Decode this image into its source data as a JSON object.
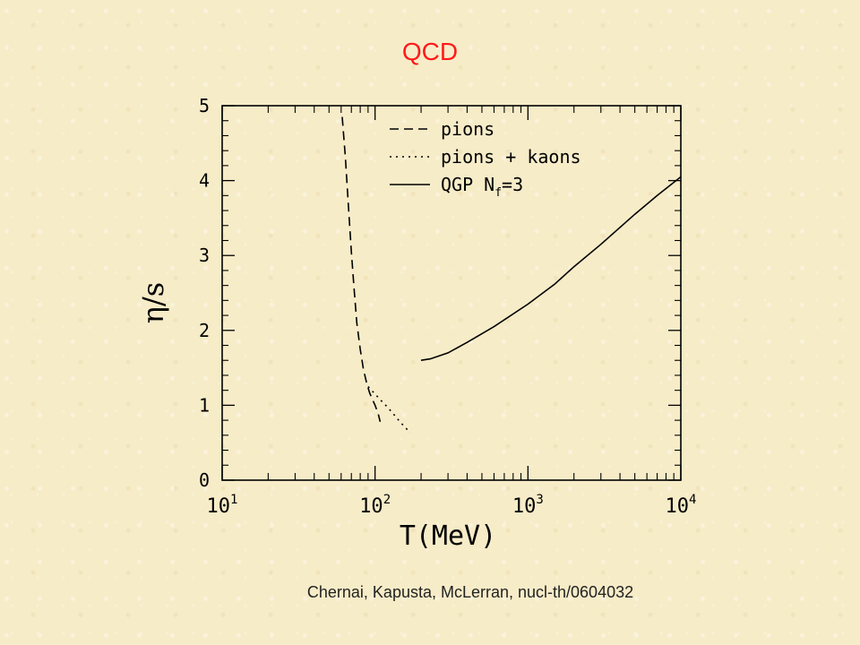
{
  "slide": {
    "title": "QCD",
    "citation": "Chernai, Kapusta, McLerran, nucl-th/0604032"
  },
  "colors": {
    "title": "#ff1a1a",
    "plot": "#000000"
  },
  "chart_data": {
    "type": "line",
    "title": "",
    "xlabel": "T(MeV)",
    "ylabel": "η/s",
    "xscale": "log",
    "xlim": [
      10,
      10000
    ],
    "ylim": [
      0,
      5
    ],
    "xticks": [
      {
        "value": 10,
        "base": "10",
        "exp": "1"
      },
      {
        "value": 100,
        "base": "10",
        "exp": "2"
      },
      {
        "value": 1000,
        "base": "10",
        "exp": "3"
      },
      {
        "value": 10000,
        "base": "10",
        "exp": "4"
      }
    ],
    "yticks": [
      "0",
      "1",
      "2",
      "3",
      "4",
      "5"
    ],
    "grid": false,
    "legend_position": "top-right",
    "series": [
      {
        "name": "pions",
        "style": "dashed",
        "x": [
          61,
          64,
          67,
          70,
          73,
          76,
          80,
          84,
          88,
          92,
          96,
          100,
          105,
          108
        ],
        "y": [
          4.85,
          4.3,
          3.65,
          3.05,
          2.55,
          2.1,
          1.75,
          1.48,
          1.3,
          1.17,
          1.08,
          1.0,
          0.88,
          0.78
        ]
      },
      {
        "name": "pions + kaons",
        "style": "dotted",
        "x": [
          90,
          100,
          110,
          120,
          130,
          140,
          150,
          160,
          170
        ],
        "y": [
          1.25,
          1.15,
          1.06,
          0.98,
          0.9,
          0.82,
          0.75,
          0.69,
          0.63
        ]
      },
      {
        "name": "QGP N",
        "name_sub": "f",
        "name_suffix": "=3",
        "style": "solid",
        "x": [
          200,
          230,
          300,
          400,
          600,
          1000,
          1500,
          2000,
          3000,
          5000,
          7000,
          10000
        ],
        "y": [
          1.6,
          1.62,
          1.7,
          1.84,
          2.05,
          2.35,
          2.62,
          2.85,
          3.15,
          3.55,
          3.8,
          4.05
        ]
      }
    ]
  }
}
